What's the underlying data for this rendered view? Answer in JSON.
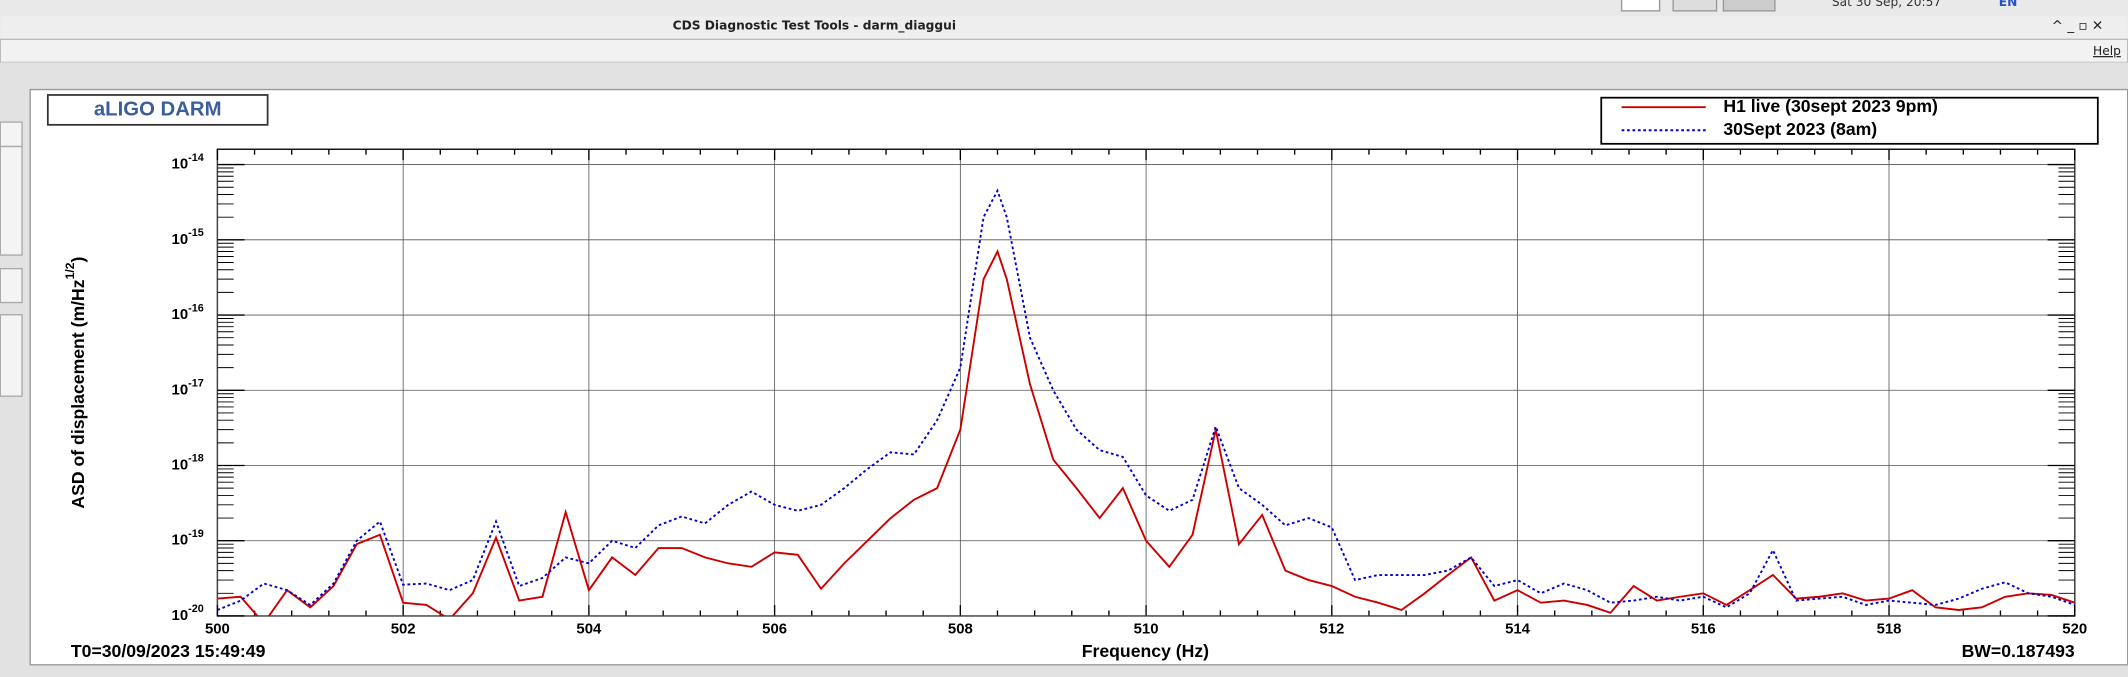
{
  "window": {
    "title": "CDS Diagnostic Test Tools - darm_diaggui",
    "clock": "Sat 30 Sep, 20:57",
    "lang": "EN",
    "menu": "Help"
  },
  "chart_data": {
    "type": "line",
    "title": "aLIGO DARM",
    "xlabel": "Frequency (Hz)",
    "ylabel": "ASD of displacement (m/Hz",
    "ylabel_sup": "1/2",
    "ylabel_end": ")",
    "start_time": "T0=30/09/2023 15:49:49",
    "bandwidth": "BW=0.187493",
    "log_y": true,
    "grid": true,
    "legend": "top-right",
    "xlim": [
      500,
      520
    ],
    "xticks": [
      500,
      502,
      504,
      506,
      508,
      510,
      512,
      514,
      516,
      518,
      520
    ],
    "ylim": [
      1e-20,
      1.6e-14
    ],
    "yticks": [
      {
        "value": 1e-20,
        "label": "10",
        "exponent": "-20"
      },
      {
        "value": 1e-19,
        "label": "10",
        "exponent": "-19"
      },
      {
        "value": 1e-18,
        "label": "10",
        "exponent": "-18"
      },
      {
        "value": 1e-17,
        "label": "10",
        "exponent": "-17"
      },
      {
        "value": 1e-16,
        "label": "10",
        "exponent": "-16"
      },
      {
        "value": 1e-15,
        "label": "10",
        "exponent": "-15"
      },
      {
        "value": 1e-14,
        "label": "10",
        "exponent": "-14"
      }
    ],
    "x": [
      500,
      500.25,
      500.5,
      500.75,
      501,
      501.25,
      501.5,
      501.75,
      502,
      502.25,
      502.5,
      502.75,
      503,
      503.25,
      503.5,
      503.75,
      504,
      504.25,
      504.5,
      504.75,
      505,
      505.25,
      505.5,
      505.75,
      506,
      506.25,
      506.5,
      506.75,
      507,
      507.25,
      507.5,
      507.75,
      508,
      508.25,
      508.4,
      508.5,
      508.75,
      509,
      509.25,
      509.5,
      509.75,
      510,
      510.25,
      510.5,
      510.75,
      511,
      511.25,
      511.5,
      511.75,
      512,
      512.25,
      512.5,
      512.75,
      513,
      513.25,
      513.5,
      513.75,
      514,
      514.25,
      514.5,
      514.75,
      515,
      515.25,
      515.5,
      515.75,
      516,
      516.25,
      516.5,
      516.75,
      517,
      517.25,
      517.5,
      517.75,
      518,
      518.25,
      518.5,
      518.75,
      519,
      519.25,
      519.5,
      519.75,
      520
    ],
    "series": [
      {
        "name": "H1 live (30sept 2023 9pm)",
        "color": "#cc0000",
        "dash": "solid",
        "values": [
          1.7e-20,
          1.8e-20,
          8e-21,
          2.2e-20,
          1.3e-20,
          2.5e-20,
          9e-20,
          1.2e-19,
          1.5e-20,
          1.4e-20,
          9e-21,
          2e-20,
          1.1e-19,
          1.6e-20,
          1.8e-20,
          2.4e-19,
          2.2e-20,
          6e-20,
          3.5e-20,
          8e-20,
          8e-20,
          6e-20,
          5e-20,
          4.5e-20,
          7e-20,
          6.5e-20,
          2.3e-20,
          5e-20,
          1e-19,
          2e-19,
          3.5e-19,
          5e-19,
          3e-18,
          3e-16,
          7e-16,
          3e-16,
          1.2e-17,
          1.2e-18,
          5e-19,
          2e-19,
          5e-19,
          1e-19,
          4.5e-20,
          1.2e-19,
          3e-18,
          9e-20,
          2.2e-19,
          4e-20,
          3e-20,
          2.5e-20,
          1.8e-20,
          1.5e-20,
          1.2e-20,
          2e-20,
          3.5e-20,
          6e-20,
          1.6e-20,
          2.2e-20,
          1.5e-20,
          1.6e-20,
          1.4e-20,
          1.1e-20,
          2.5e-20,
          1.6e-20,
          1.8e-20,
          2e-20,
          1.4e-20,
          2.2e-20,
          3.5e-20,
          1.7e-20,
          1.8e-20,
          2e-20,
          1.6e-20,
          1.7e-20,
          2.2e-20,
          1.3e-20,
          1.2e-20,
          1.3e-20,
          1.8e-20,
          2e-20,
          1.9e-20,
          1.5e-20
        ]
      },
      {
        "name": "30Sept 2023 (8am)",
        "color": "#0000cc",
        "dash": "dotted",
        "values": [
          1.2e-20,
          1.6e-20,
          2.7e-20,
          2.2e-20,
          1.4e-20,
          2.7e-20,
          1e-19,
          1.8e-19,
          2.6e-20,
          2.7e-20,
          2.2e-20,
          3e-20,
          1.8e-19,
          2.5e-20,
          3.2e-20,
          6e-20,
          5e-20,
          1e-19,
          8e-20,
          1.6e-19,
          2.1e-19,
          1.7e-19,
          3e-19,
          4.5e-19,
          3e-19,
          2.5e-19,
          3e-19,
          5e-19,
          9e-19,
          1.5e-18,
          1.4e-18,
          4e-18,
          2e-17,
          2e-15,
          4.5e-15,
          2e-15,
          5e-17,
          1e-17,
          3e-18,
          1.6e-18,
          1.3e-18,
          4e-19,
          2.5e-19,
          3.5e-19,
          3.3e-18,
          5e-19,
          3e-19,
          1.6e-19,
          2e-19,
          1.5e-19,
          3e-20,
          3.5e-20,
          3.5e-20,
          3.5e-20,
          4e-20,
          6e-20,
          2.5e-20,
          3e-20,
          2e-20,
          2.7e-20,
          2.2e-20,
          1.5e-20,
          1.6e-20,
          1.8e-20,
          1.6e-20,
          1.8e-20,
          1.3e-20,
          2e-20,
          7.5e-20,
          1.6e-20,
          1.7e-20,
          1.8e-20,
          1.4e-20,
          1.6e-20,
          1.5e-20,
          1.4e-20,
          1.7e-20,
          2.3e-20,
          2.8e-20,
          2e-20,
          1.8e-20,
          1.4e-20
        ]
      }
    ]
  }
}
